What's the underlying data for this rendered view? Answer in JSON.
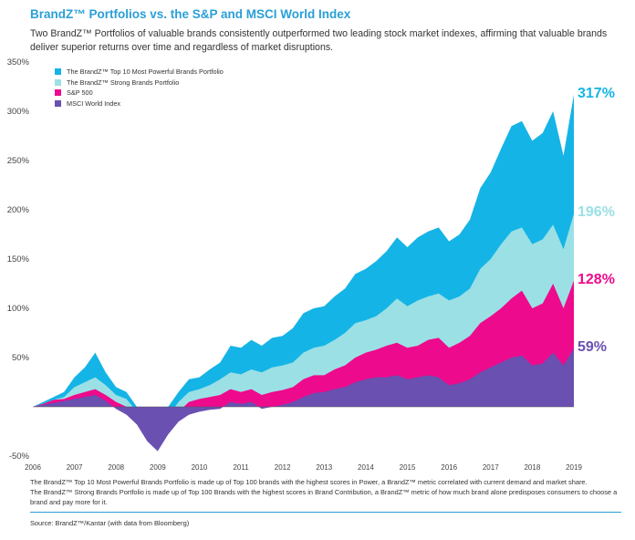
{
  "title": "BrandZ™ Portfolios vs. the S&P and MSCI World Index",
  "subtitle": "Two BrandZ™ Portfolios of valuable brands consistently outperformed two leading stock market indexes, affirming that valuable brands deliver superior returns over time and regardless of market disruptions.",
  "footnote_1": "The BrandZ™ Top 10 Most Powerful Brands Portfolio is made up of Top 100 brands with the highest scores in Power, a BrandZ™ metric correlated with current demand and market share.",
  "footnote_2": "The BrandZ™ Strong Brands Portfolio is made up of Top 100 Brands with the highest scores in Brand Contribution, a BrandZ™ metric of how much brand alone predisposes consumers to choose a brand and pay more for it.",
  "source": "Source: BrandZ™/Kantar (with data from Bloomberg)",
  "chart_data": {
    "type": "area",
    "x": [
      2006.0,
      2006.25,
      2006.5,
      2006.75,
      2007.0,
      2007.25,
      2007.5,
      2007.75,
      2008.0,
      2008.25,
      2008.5,
      2008.75,
      2009.0,
      2009.25,
      2009.5,
      2009.75,
      2010.0,
      2010.25,
      2010.5,
      2010.75,
      2011.0,
      2011.25,
      2011.5,
      2011.75,
      2012.0,
      2012.25,
      2012.5,
      2012.75,
      2013.0,
      2013.25,
      2013.5,
      2013.75,
      2014.0,
      2014.25,
      2014.5,
      2014.75,
      2015.0,
      2015.25,
      2015.5,
      2015.75,
      2016.0,
      2016.25,
      2016.5,
      2016.75,
      2017.0,
      2017.25,
      2017.5,
      2017.75,
      2018.0,
      2018.25,
      2018.5,
      2018.75,
      2019.0
    ],
    "series": [
      {
        "name": "The BrandZ™ Top 10 Most Powerful Brands Portfolio",
        "color": "#15b4e6",
        "end_label": "317%",
        "values": [
          0,
          5,
          10,
          15,
          30,
          40,
          55,
          35,
          20,
          15,
          0,
          -20,
          -30,
          0,
          15,
          28,
          30,
          38,
          45,
          62,
          60,
          68,
          62,
          70,
          72,
          80,
          95,
          100,
          102,
          112,
          120,
          135,
          140,
          148,
          158,
          172,
          162,
          172,
          178,
          182,
          168,
          175,
          190,
          222,
          238,
          262,
          285,
          290,
          270,
          278,
          300,
          255,
          317
        ]
      },
      {
        "name": "The BrandZ™ Strong Brands Portfolio",
        "color": "#9be0e5",
        "end_label": "196%",
        "values": [
          0,
          3,
          7,
          10,
          20,
          25,
          30,
          22,
          12,
          8,
          -5,
          -25,
          -35,
          -10,
          5,
          15,
          18,
          22,
          28,
          35,
          33,
          38,
          35,
          40,
          42,
          45,
          55,
          60,
          62,
          68,
          75,
          85,
          88,
          92,
          100,
          110,
          102,
          108,
          112,
          115,
          108,
          112,
          120,
          140,
          150,
          165,
          178,
          182,
          165,
          170,
          185,
          160,
          196
        ]
      },
      {
        "name": "S&P 500",
        "color": "#ee0a8c",
        "end_label": "128%",
        "values": [
          0,
          3,
          7,
          8,
          12,
          15,
          18,
          12,
          5,
          0,
          -10,
          -30,
          -38,
          -20,
          -5,
          5,
          8,
          10,
          12,
          18,
          15,
          18,
          12,
          15,
          17,
          20,
          28,
          32,
          32,
          38,
          42,
          50,
          55,
          58,
          62,
          65,
          60,
          62,
          68,
          70,
          60,
          65,
          72,
          85,
          92,
          100,
          110,
          118,
          100,
          105,
          125,
          100,
          128
        ]
      },
      {
        "name": "MSCI World Index",
        "color": "#6950b1",
        "end_label": "59%",
        "values": [
          0,
          2,
          4,
          6,
          8,
          10,
          12,
          6,
          -2,
          -8,
          -18,
          -35,
          -45,
          -28,
          -15,
          -8,
          -5,
          -3,
          -2,
          5,
          3,
          5,
          -2,
          0,
          2,
          5,
          10,
          14,
          15,
          18,
          20,
          25,
          28,
          30,
          30,
          32,
          28,
          30,
          32,
          30,
          22,
          24,
          28,
          35,
          40,
          45,
          50,
          52,
          42,
          44,
          55,
          42,
          59
        ]
      }
    ],
    "legend": [
      "The BrandZ™ Top 10 Most Powerful Brands Portfolio",
      "The BrandZ™ Strong Brands Portfolio",
      "S&P 500",
      "MSCI World Index"
    ],
    "legend_position": "top-left",
    "x_ticks": [
      "2006",
      "2007",
      "2008",
      "2009",
      "2010",
      "2011",
      "2012",
      "2013",
      "2014",
      "2015",
      "2016",
      "2017",
      "2018",
      "2019"
    ],
    "y_ticks": [
      "350%",
      "300%",
      "250%",
      "200%",
      "150%",
      "100%",
      "50%",
      "-50%"
    ],
    "ylim": [
      -50,
      350
    ],
    "xlim": [
      2006,
      2019
    ],
    "grid": false
  }
}
